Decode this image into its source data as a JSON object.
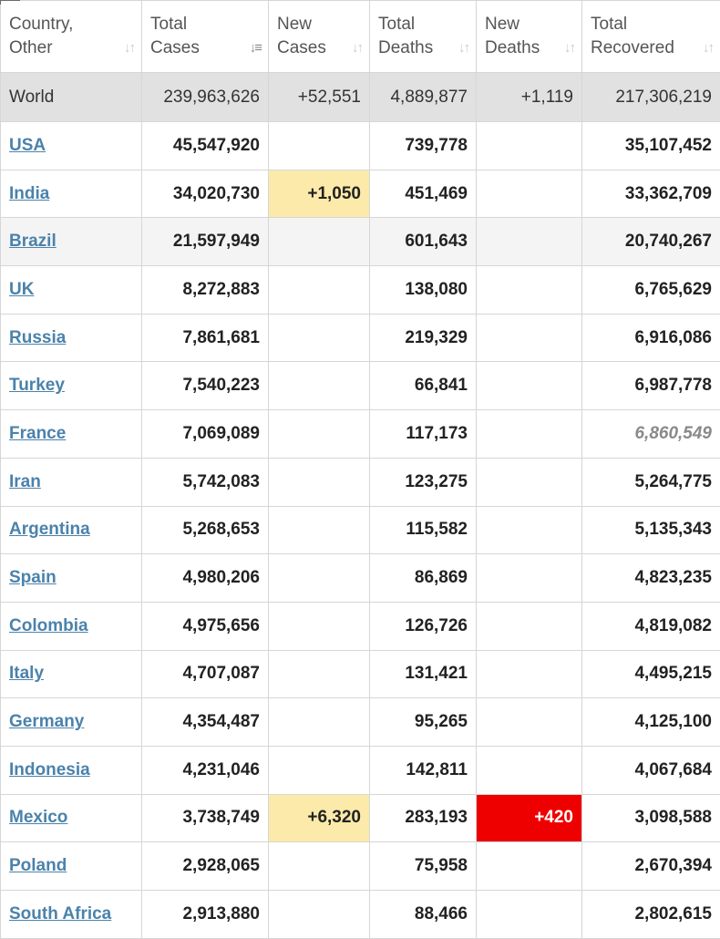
{
  "headers": [
    {
      "line1": "Country,",
      "line2": "Other"
    },
    {
      "line1": "Total",
      "line2": "Cases"
    },
    {
      "line1": "New",
      "line2": "Cases"
    },
    {
      "line1": "Total",
      "line2": "Deaths"
    },
    {
      "line1": "New",
      "line2": "Deaths"
    },
    {
      "line1": "Total",
      "line2": "Recovered"
    }
  ],
  "world": {
    "name": "World",
    "total_cases": "239,963,626",
    "new_cases": "+52,551",
    "total_deaths": "4,889,877",
    "new_deaths": "+1,119",
    "total_recovered": "217,306,219"
  },
  "rows": [
    {
      "name": "USA",
      "total_cases": "45,547,920",
      "new_cases": "",
      "total_deaths": "739,778",
      "new_deaths": "",
      "total_recovered": "35,107,452"
    },
    {
      "name": "India",
      "total_cases": "34,020,730",
      "new_cases": "+1,050",
      "total_deaths": "451,469",
      "new_deaths": "",
      "total_recovered": "33,362,709"
    },
    {
      "name": "Brazil",
      "total_cases": "21,597,949",
      "new_cases": "",
      "total_deaths": "601,643",
      "new_deaths": "",
      "total_recovered": "20,740,267"
    },
    {
      "name": "UK",
      "total_cases": "8,272,883",
      "new_cases": "",
      "total_deaths": "138,080",
      "new_deaths": "",
      "total_recovered": "6,765,629"
    },
    {
      "name": "Russia",
      "total_cases": "7,861,681",
      "new_cases": "",
      "total_deaths": "219,329",
      "new_deaths": "",
      "total_recovered": "6,916,086"
    },
    {
      "name": "Turkey",
      "total_cases": "7,540,223",
      "new_cases": "",
      "total_deaths": "66,841",
      "new_deaths": "",
      "total_recovered": "6,987,778"
    },
    {
      "name": "France",
      "total_cases": "7,069,089",
      "new_cases": "",
      "total_deaths": "117,173",
      "new_deaths": "",
      "total_recovered": "6,860,549"
    },
    {
      "name": "Iran",
      "total_cases": "5,742,083",
      "new_cases": "",
      "total_deaths": "123,275",
      "new_deaths": "",
      "total_recovered": "5,264,775"
    },
    {
      "name": "Argentina",
      "total_cases": "5,268,653",
      "new_cases": "",
      "total_deaths": "115,582",
      "new_deaths": "",
      "total_recovered": "5,135,343"
    },
    {
      "name": "Spain",
      "total_cases": "4,980,206",
      "new_cases": "",
      "total_deaths": "86,869",
      "new_deaths": "",
      "total_recovered": "4,823,235"
    },
    {
      "name": "Colombia",
      "total_cases": "4,975,656",
      "new_cases": "",
      "total_deaths": "126,726",
      "new_deaths": "",
      "total_recovered": "4,819,082"
    },
    {
      "name": "Italy",
      "total_cases": "4,707,087",
      "new_cases": "",
      "total_deaths": "131,421",
      "new_deaths": "",
      "total_recovered": "4,495,215"
    },
    {
      "name": "Germany",
      "total_cases": "4,354,487",
      "new_cases": "",
      "total_deaths": "95,265",
      "new_deaths": "",
      "total_recovered": "4,125,100"
    },
    {
      "name": "Indonesia",
      "total_cases": "4,231,046",
      "new_cases": "",
      "total_deaths": "142,811",
      "new_deaths": "",
      "total_recovered": "4,067,684"
    },
    {
      "name": "Mexico",
      "total_cases": "3,738,749",
      "new_cases": "+6,320",
      "total_deaths": "283,193",
      "new_deaths": "+420",
      "total_recovered": "3,098,588"
    },
    {
      "name": "Poland",
      "total_cases": "2,928,065",
      "new_cases": "",
      "total_deaths": "75,958",
      "new_deaths": "",
      "total_recovered": "2,670,394"
    },
    {
      "name": "South Africa",
      "total_cases": "2,913,880",
      "new_cases": "",
      "total_deaths": "88,466",
      "new_deaths": "",
      "total_recovered": "2,802,615"
    }
  ],
  "colors": {
    "new_cases_highlight": "#fbeaa9",
    "new_deaths_highlight": "#ee0000",
    "link": "#4b82ab",
    "world_row": "#e1e1e1"
  }
}
